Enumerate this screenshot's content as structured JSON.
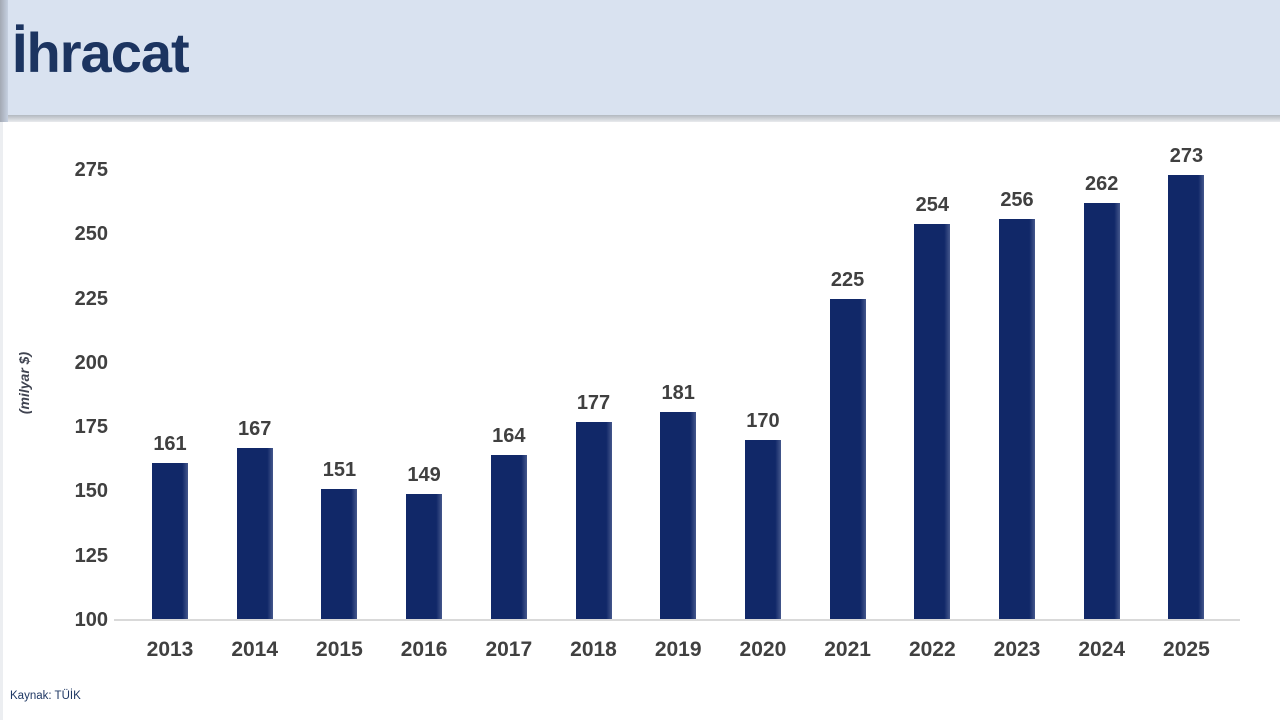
{
  "header": {
    "title": "İhracat"
  },
  "footer": {
    "source": "Kaynak: TÜİK"
  },
  "colors": {
    "header_bg": "#d9e2f0",
    "header_title": "#1c3460",
    "bar": "#112868",
    "bar_edge": "#44578c",
    "label": "#404040",
    "axis_line": "#d9d9d9",
    "source_text": "#1f3864"
  },
  "chart_data": {
    "type": "bar",
    "title": "İhracat",
    "categories": [
      "2013",
      "2014",
      "2015",
      "2016",
      "2017",
      "2018",
      "2019",
      "2020",
      "2021",
      "2022",
      "2023",
      "2024",
      "2025"
    ],
    "values": [
      161,
      167,
      151,
      149,
      164,
      177,
      181,
      170,
      225,
      254,
      256,
      262,
      273
    ],
    "xlabel": "",
    "ylabel": "(milyar $)",
    "yticks": [
      275,
      250,
      225,
      200,
      175,
      150,
      125,
      100
    ],
    "ylim": [
      100,
      283
    ],
    "grid": false,
    "legend": false,
    "bar_labels": true,
    "unit": "milyar $"
  }
}
